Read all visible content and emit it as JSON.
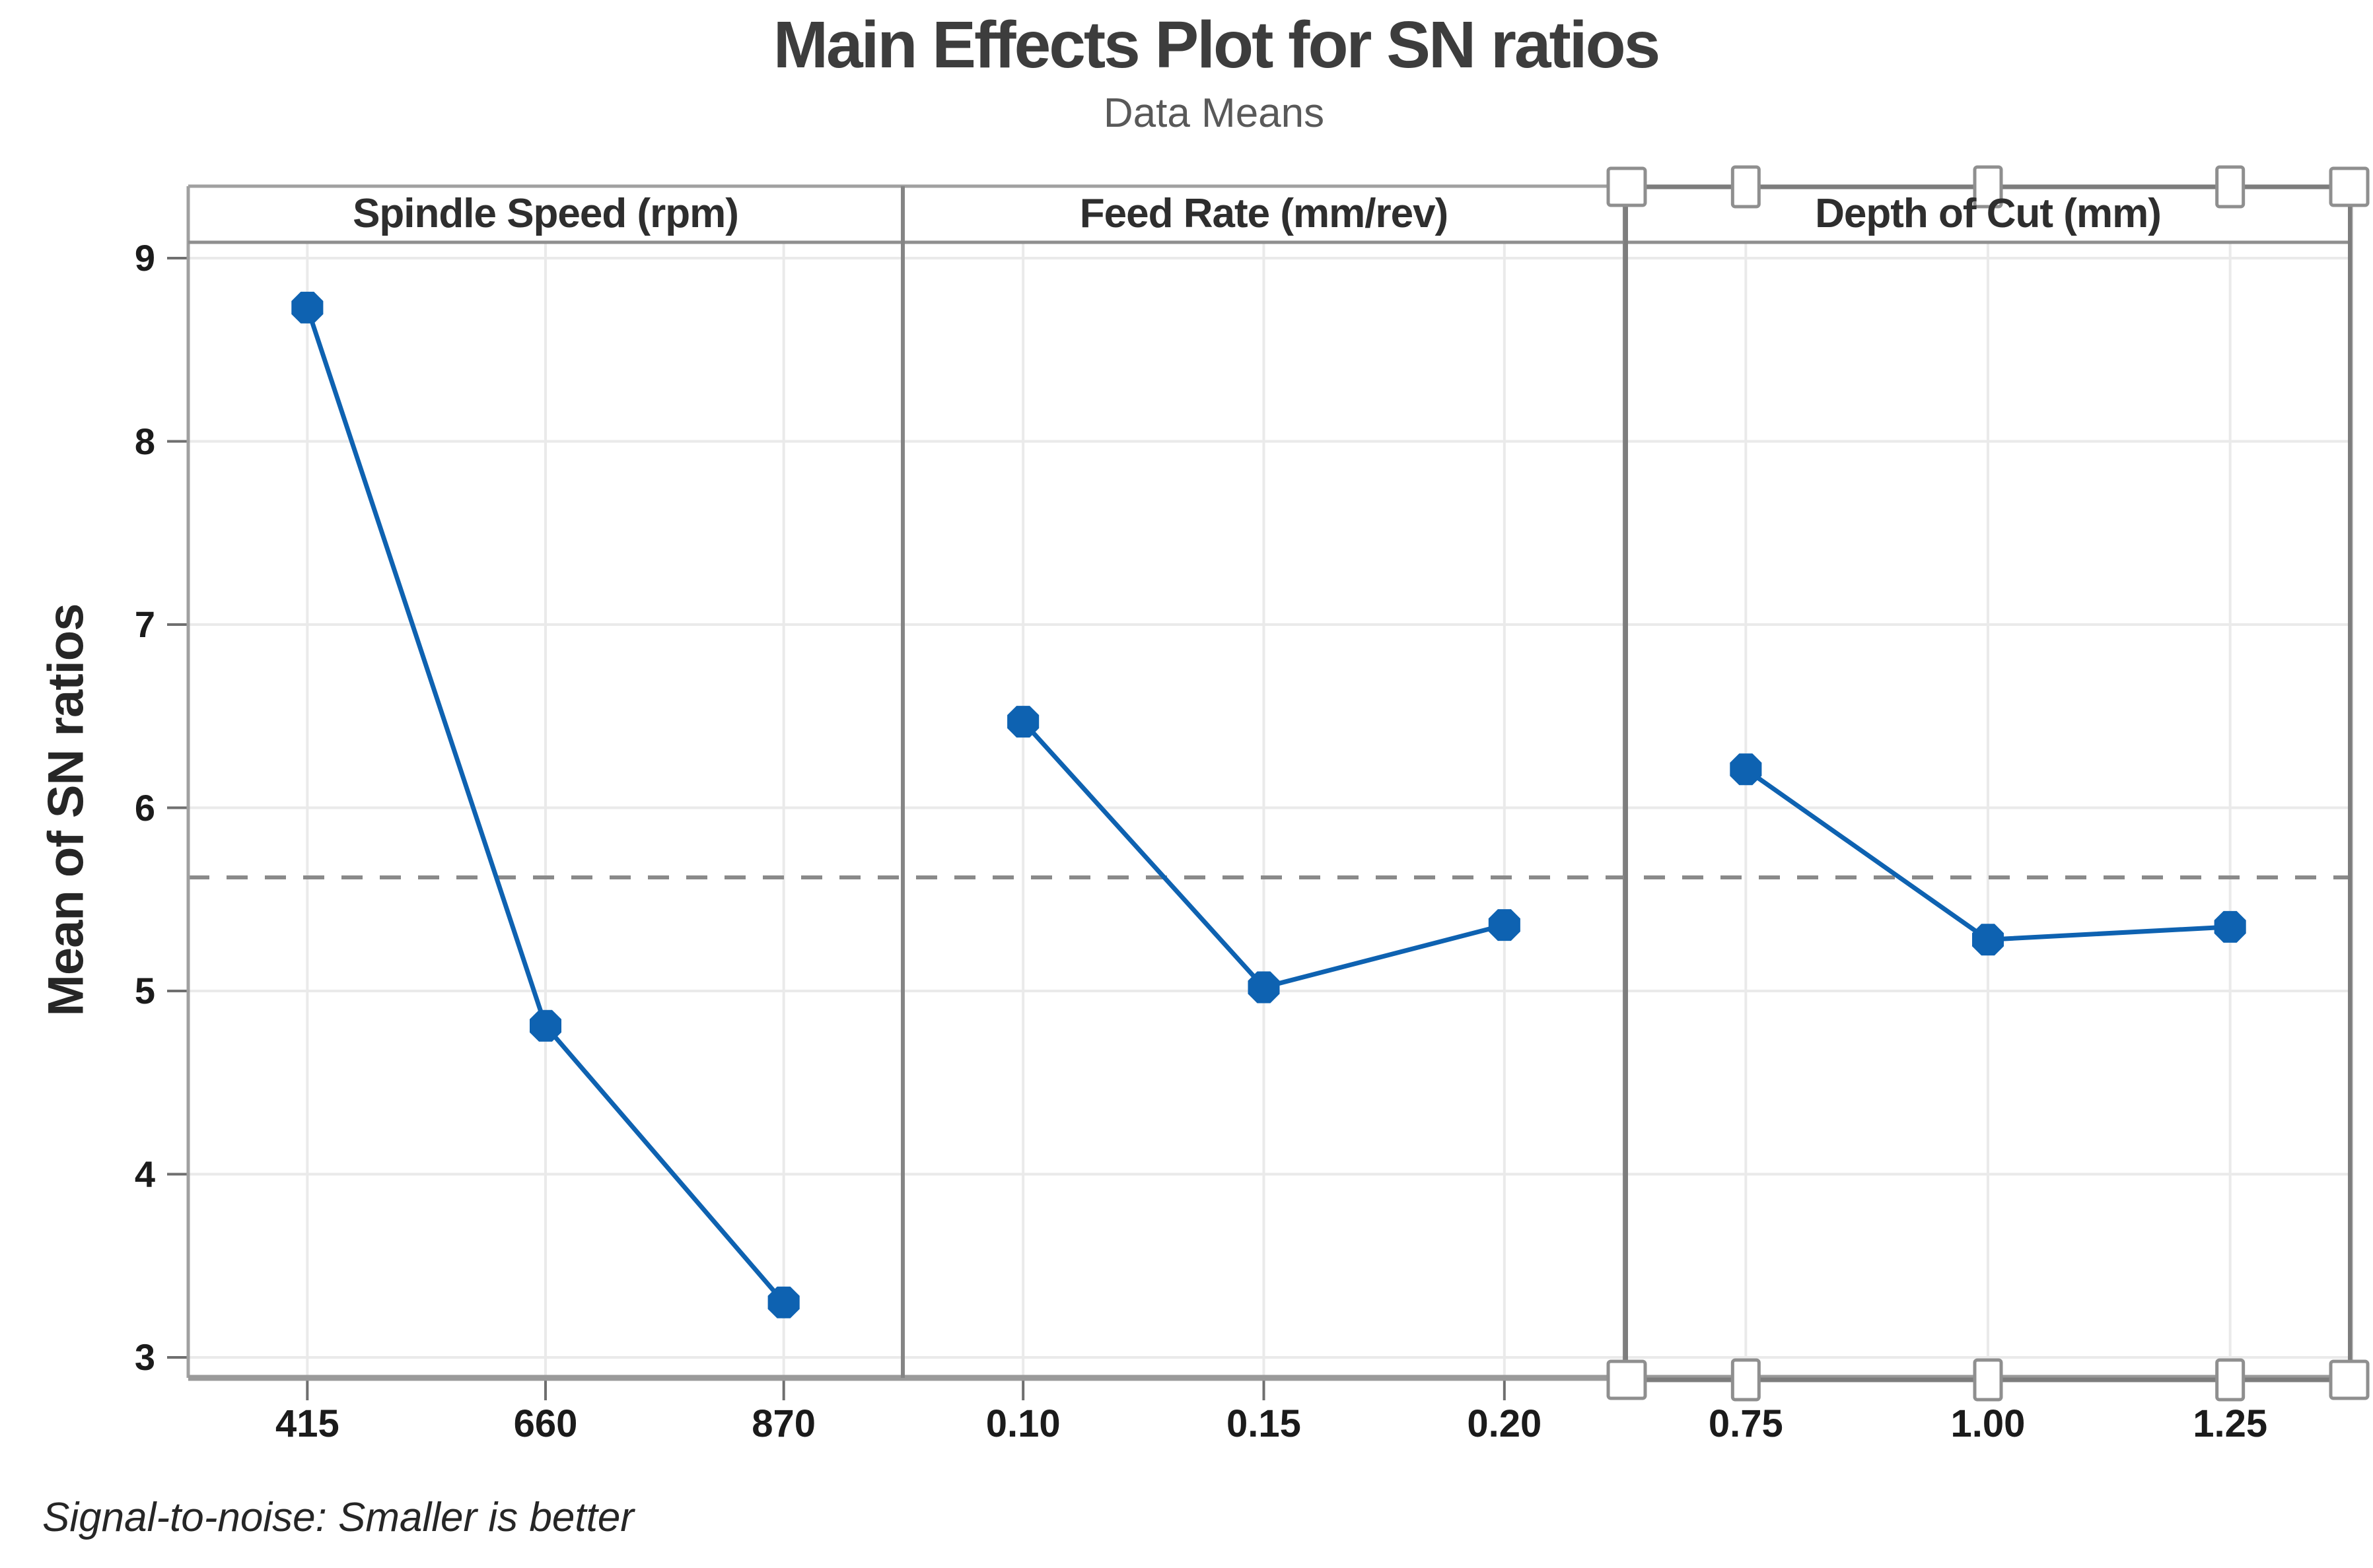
{
  "chart_data": {
    "type": "line",
    "title": "Main Effects Plot for SN ratios",
    "subtitle": "Data Means",
    "ylabel": "Mean of SN ratios",
    "ylim": [
      3,
      9
    ],
    "yticks": [
      "9",
      "8",
      "7",
      "6",
      "5",
      "4",
      "3"
    ],
    "grid": true,
    "legend": "none",
    "grand_mean": 5.62,
    "grand_mean_style": "dashed-gray-horizontal-reference-line",
    "series_color": "#0e62b1",
    "panels": [
      {
        "label": "Spindle Speed (rpm)",
        "categories": [
          "415",
          "660",
          "870"
        ],
        "values": [
          8.73,
          4.81,
          3.3
        ]
      },
      {
        "label": "Feed Rate (mm/rev)",
        "categories": [
          "0.10",
          "0.15",
          "0.20"
        ],
        "values": [
          6.47,
          5.02,
          5.36
        ]
      },
      {
        "label": "Depth of Cut (mm)",
        "categories": [
          "0.75",
          "1.00",
          "1.25"
        ],
        "values": [
          6.21,
          5.28,
          5.35
        ]
      }
    ],
    "footnote": "Signal-to-noise: Smaller is better",
    "selection": {
      "selected_panel": "Depth of Cut (mm)",
      "handle_count": 10
    }
  },
  "colors": {
    "background": "#ffffff",
    "accent_blue": "#0e62b1",
    "frame_gray": "#a0a0a0",
    "divider_gray": "#858585",
    "axis_gray": "#9a9a9a",
    "tick_gray": "#6f6f6f",
    "grid_gray": "#eaeaea",
    "mean_line_gray": "#8a8a8a",
    "selection_gray": "#7d7d7d",
    "handle_border_gray": "#8f8f8f"
  }
}
